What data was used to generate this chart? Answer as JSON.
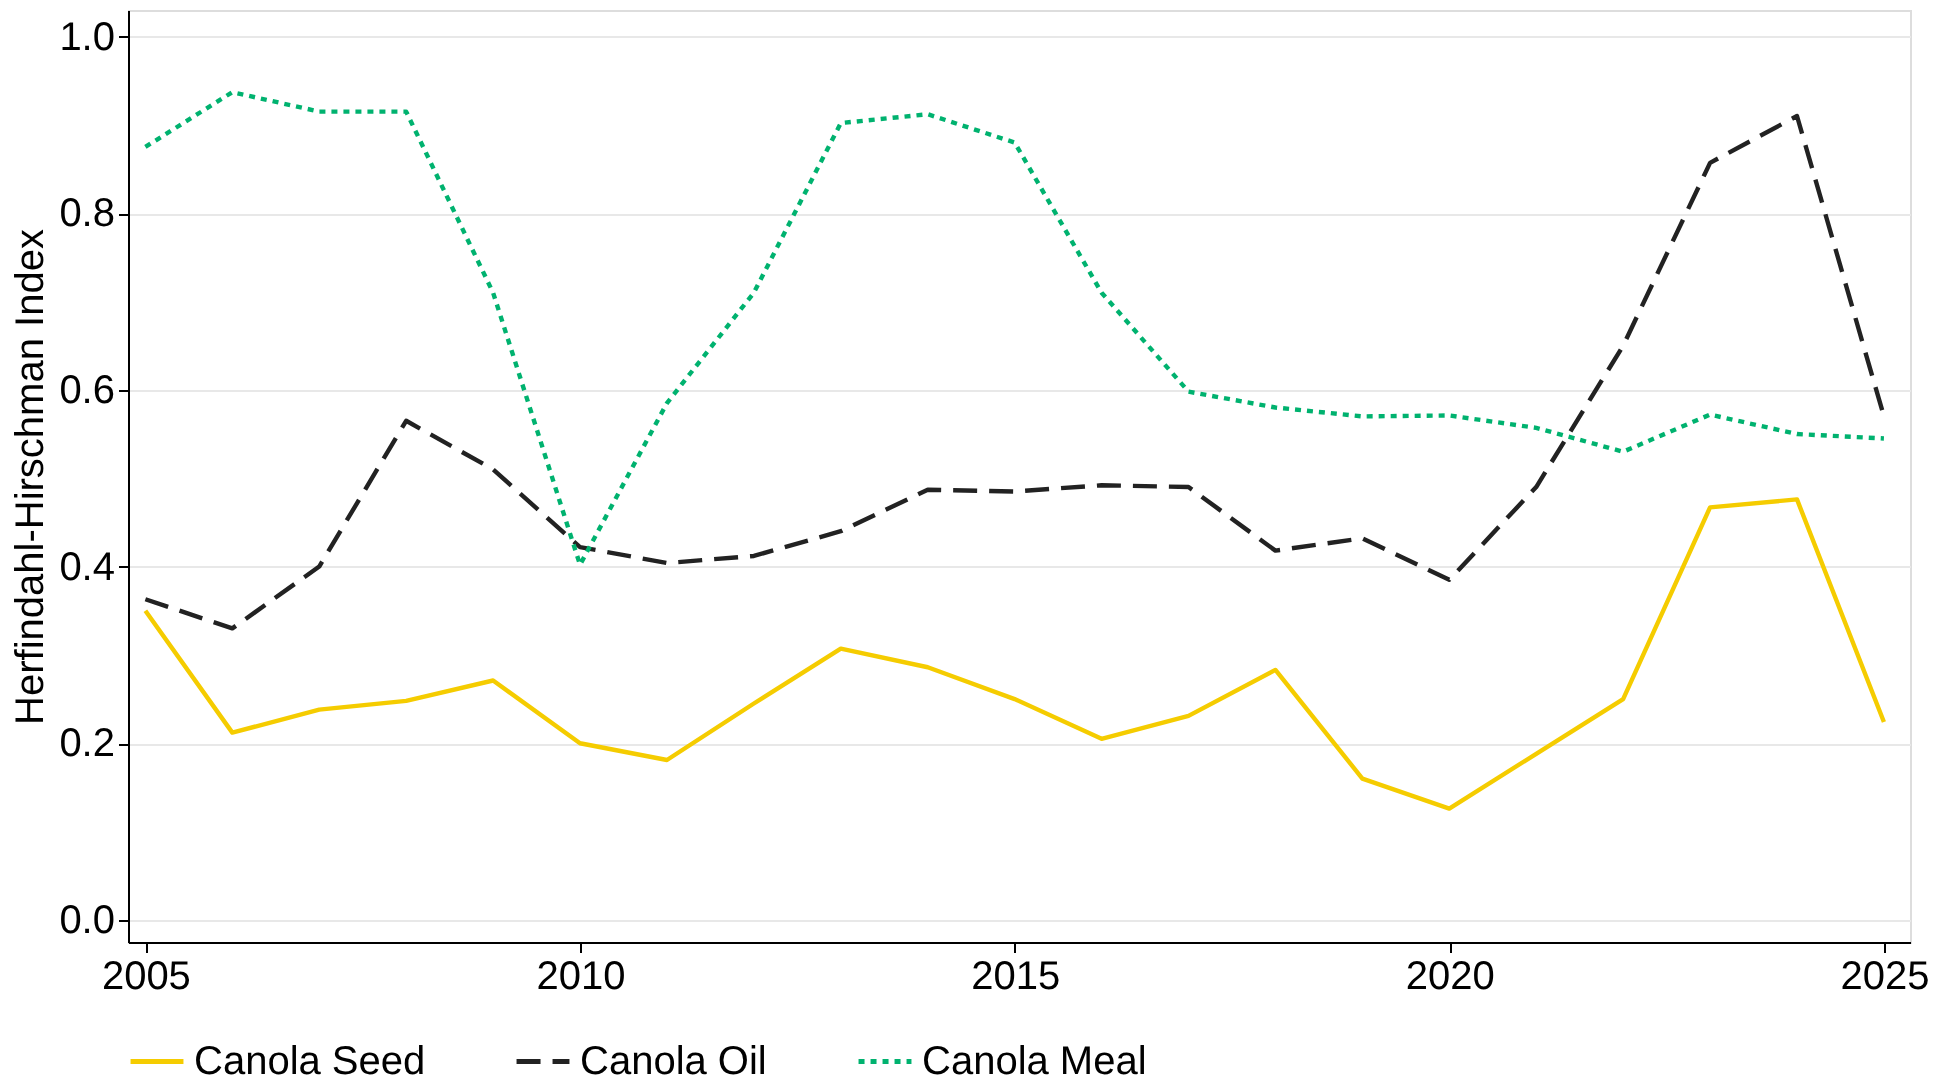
{
  "chart_data": {
    "type": "line",
    "ylabel": "Herfindahl-Hirschman Index",
    "x": [
      2005,
      2006,
      2007,
      2008,
      2009,
      2010,
      2011,
      2012,
      2013,
      2014,
      2015,
      2016,
      2017,
      2018,
      2019,
      2020,
      2021,
      2022,
      2023,
      2024,
      2025
    ],
    "series": [
      {
        "name": "Canola Seed",
        "color": "#f5cc00",
        "line_style": "solid",
        "values": [
          0.35,
          0.212,
          0.238,
          0.248,
          0.271,
          0.2,
          0.181,
          0.245,
          0.307,
          0.286,
          0.25,
          0.205,
          0.231,
          0.283,
          0.16,
          0.126,
          0.188,
          0.25,
          0.467,
          0.476,
          0.224
        ]
      },
      {
        "name": "Canola Oil",
        "color": "#222222",
        "line_style": "dashed",
        "values": [
          0.363,
          0.33,
          0.4,
          0.565,
          0.51,
          0.422,
          0.404,
          0.412,
          0.44,
          0.487,
          0.485,
          0.492,
          0.49,
          0.418,
          0.432,
          0.385,
          0.49,
          0.65,
          0.857,
          0.91,
          0.57
        ]
      },
      {
        "name": "Canola Meal",
        "color": "#00b26f",
        "line_style": "dotted",
        "values": [
          0.875,
          0.937,
          0.915,
          0.915,
          0.71,
          0.402,
          0.585,
          0.71,
          0.902,
          0.912,
          0.88,
          0.71,
          0.598,
          0.58,
          0.57,
          0.571,
          0.557,
          0.53,
          0.572,
          0.55,
          0.545
        ]
      }
    ],
    "xlim": [
      2004.8,
      2025.3
    ],
    "xticks": [
      2005,
      2010,
      2015,
      2020,
      2025
    ],
    "ylim": [
      -0.025,
      1.03
    ],
    "yticks": [
      {
        "value": 0,
        "label": "0.0"
      },
      {
        "value": 0.2,
        "label": "0.2"
      },
      {
        "value": 0.4,
        "label": "0.4"
      },
      {
        "value": 0.6,
        "label": "0.6"
      },
      {
        "value": 0.8,
        "label": "0.8"
      },
      {
        "value": 1.0,
        "label": "1.0"
      }
    ],
    "grid": "y",
    "legend": "bottom"
  }
}
